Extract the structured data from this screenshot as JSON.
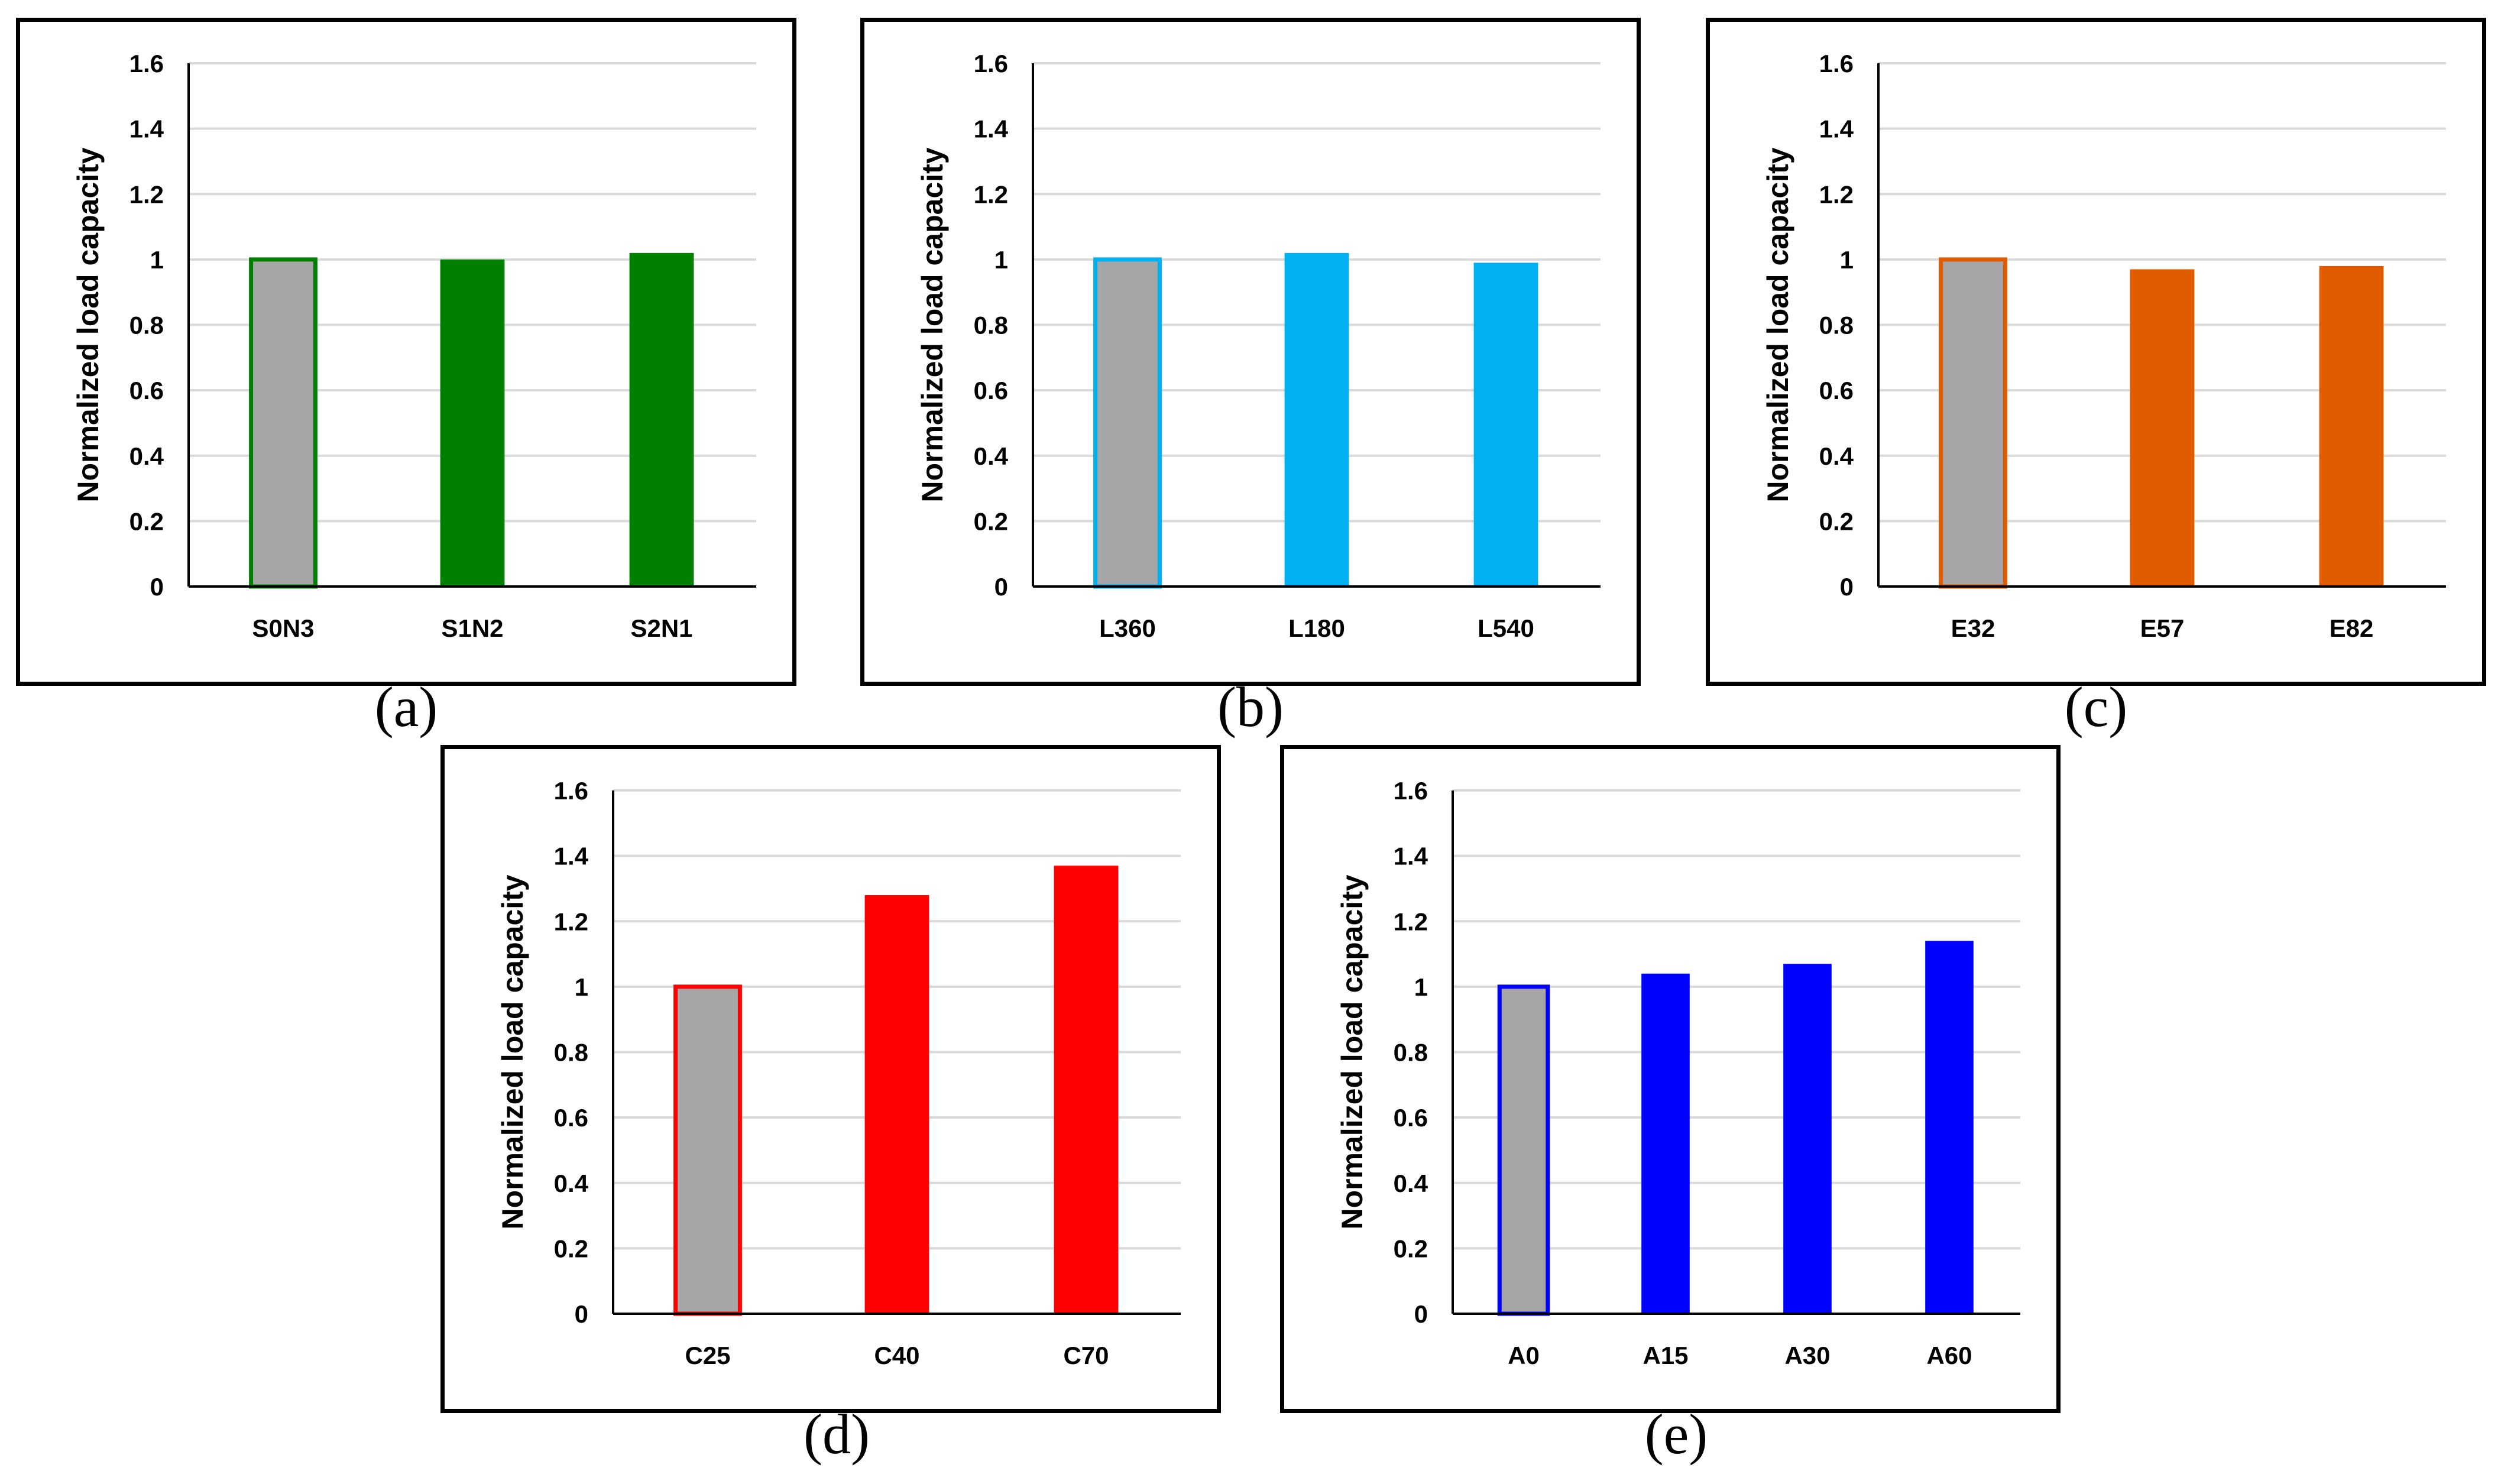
{
  "chart_data": [
    {
      "type": "bar",
      "panel_label": "(a)",
      "ylabel": "Normalized load capacity",
      "ylim": [
        0,
        1.6
      ],
      "yticks": [
        0,
        0.2,
        0.4,
        0.6,
        0.8,
        1,
        1.2,
        1.4,
        1.6
      ],
      "ytick_labels": [
        "0",
        "0.2",
        "0.4",
        "0.6",
        "0.8",
        "1",
        "1.2",
        "1.4",
        "1.6"
      ],
      "grid": true,
      "color": "#007f00",
      "reference_color": "#a6a6a6",
      "categories": [
        "S0N3",
        "S1N2",
        "S2N1"
      ],
      "values": [
        1.0,
        1.0,
        1.02
      ]
    },
    {
      "type": "bar",
      "panel_label": "(b)",
      "ylabel": "Normalized load capacity",
      "ylim": [
        0,
        1.6
      ],
      "yticks": [
        0,
        0.2,
        0.4,
        0.6,
        0.8,
        1,
        1.2,
        1.4,
        1.6
      ],
      "ytick_labels": [
        "0",
        "0.2",
        "0.4",
        "0.6",
        "0.8",
        "1",
        "1.2",
        "1.4",
        "1.6"
      ],
      "grid": true,
      "color": "#00b0f0",
      "reference_color": "#a6a6a6",
      "categories": [
        "L360",
        "L180",
        "L540"
      ],
      "values": [
        1.0,
        1.02,
        0.99
      ]
    },
    {
      "type": "bar",
      "panel_label": "(c)",
      "ylabel": "Normalized load capacity",
      "ylim": [
        0,
        1.6
      ],
      "yticks": [
        0,
        0.2,
        0.4,
        0.6,
        0.8,
        1,
        1.2,
        1.4,
        1.6
      ],
      "ytick_labels": [
        "0",
        "0.2",
        "0.4",
        "0.6",
        "0.8",
        "1",
        "1.2",
        "1.4",
        "1.6"
      ],
      "grid": true,
      "color": "#e05a00",
      "reference_color": "#a6a6a6",
      "categories": [
        "E32",
        "E57",
        "E82"
      ],
      "values": [
        1.0,
        0.97,
        0.98
      ]
    },
    {
      "type": "bar",
      "panel_label": "(d)",
      "ylabel": "Normalized load capacity",
      "ylim": [
        0,
        1.6
      ],
      "yticks": [
        0,
        0.2,
        0.4,
        0.6,
        0.8,
        1,
        1.2,
        1.4,
        1.6
      ],
      "ytick_labels": [
        "0",
        "0.2",
        "0.4",
        "0.6",
        "0.8",
        "1",
        "1.2",
        "1.4",
        "1.6"
      ],
      "grid": true,
      "color": "#ff0000",
      "reference_color": "#a6a6a6",
      "categories": [
        "C25",
        "C40",
        "C70"
      ],
      "values": [
        1.0,
        1.28,
        1.37
      ]
    },
    {
      "type": "bar",
      "panel_label": "(e)",
      "ylabel": "Normalized load capacity",
      "ylim": [
        0,
        1.6
      ],
      "yticks": [
        0,
        0.2,
        0.4,
        0.6,
        0.8,
        1,
        1.2,
        1.4,
        1.6
      ],
      "ytick_labels": [
        "0",
        "0.2",
        "0.4",
        "0.6",
        "0.8",
        "1",
        "1.2",
        "1.4",
        "1.6"
      ],
      "grid": true,
      "color": "#0000ff",
      "reference_color": "#a6a6a6",
      "categories": [
        "A0",
        "A15",
        "A30",
        "A60"
      ],
      "values": [
        1.0,
        1.04,
        1.07,
        1.14
      ]
    }
  ]
}
